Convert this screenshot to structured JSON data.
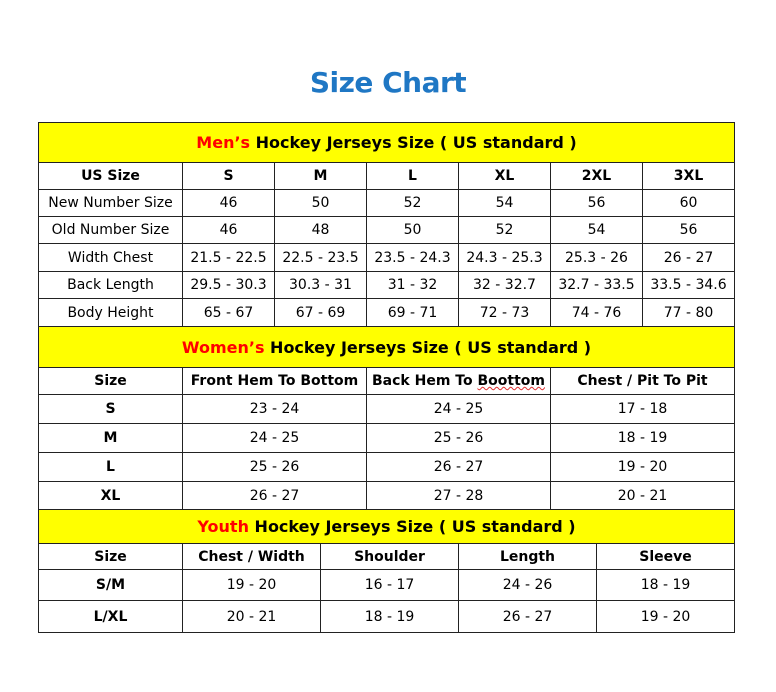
{
  "title": "Size Chart",
  "colors": {
    "title": "#1f77c4",
    "header_bg": "#ffff00",
    "accent_red": "#ff0000"
  },
  "mens": {
    "header_prefix": "Men’s",
    "header_rest": "Hockey Jerseys Size ( US standard )",
    "columns": [
      "US Size",
      "S",
      "M",
      "L",
      "XL",
      "2XL",
      "3XL"
    ],
    "rows": [
      [
        "New Number Size",
        "46",
        "50",
        "52",
        "54",
        "56",
        "60"
      ],
      [
        "Old Number Size",
        "46",
        "48",
        "50",
        "52",
        "54",
        "56"
      ],
      [
        "Width Chest",
        "21.5 - 22.5",
        "22.5 - 23.5",
        "23.5 - 24.3",
        "24.3 - 25.3",
        "25.3 - 26",
        "26 - 27"
      ],
      [
        "Back Length",
        "29.5 - 30.3",
        "30.3 - 31",
        "31 - 32",
        "32 - 32.7",
        "32.7 - 33.5",
        "33.5 - 34.6"
      ],
      [
        "Body Height",
        "65 - 67",
        "67 - 69",
        "69 - 71",
        "72 - 73",
        "74 - 76",
        "77 - 80"
      ]
    ]
  },
  "womens": {
    "header_prefix": "Women’s",
    "header_rest": "Hockey Jerseys Size ( US standard )",
    "columns": [
      "Size",
      "Front Hem To Bottom",
      "Back Hem To Boottom",
      "Chest / Pit To Pit"
    ],
    "rows": [
      [
        "S",
        "23 - 24",
        "24 - 25",
        "17 - 18"
      ],
      [
        "M",
        "24 - 25",
        "25 - 26",
        "18 - 19"
      ],
      [
        "L",
        "25 - 26",
        "26 - 27",
        "19 - 20"
      ],
      [
        "XL",
        "26 - 27",
        "27 - 28",
        "20 - 21"
      ]
    ]
  },
  "youth": {
    "header_prefix": "Youth",
    "header_rest": "Hockey Jerseys Size ( US standard )",
    "columns": [
      "Size",
      "Chest / Width",
      "Shoulder",
      "Length",
      "Sleeve"
    ],
    "rows": [
      [
        "S/M",
        "19 - 20",
        "16 - 17",
        "24 - 26",
        "18 - 19"
      ],
      [
        "L/XL",
        "20 - 21",
        "18 - 19",
        "26 - 27",
        "19 - 20"
      ]
    ]
  }
}
